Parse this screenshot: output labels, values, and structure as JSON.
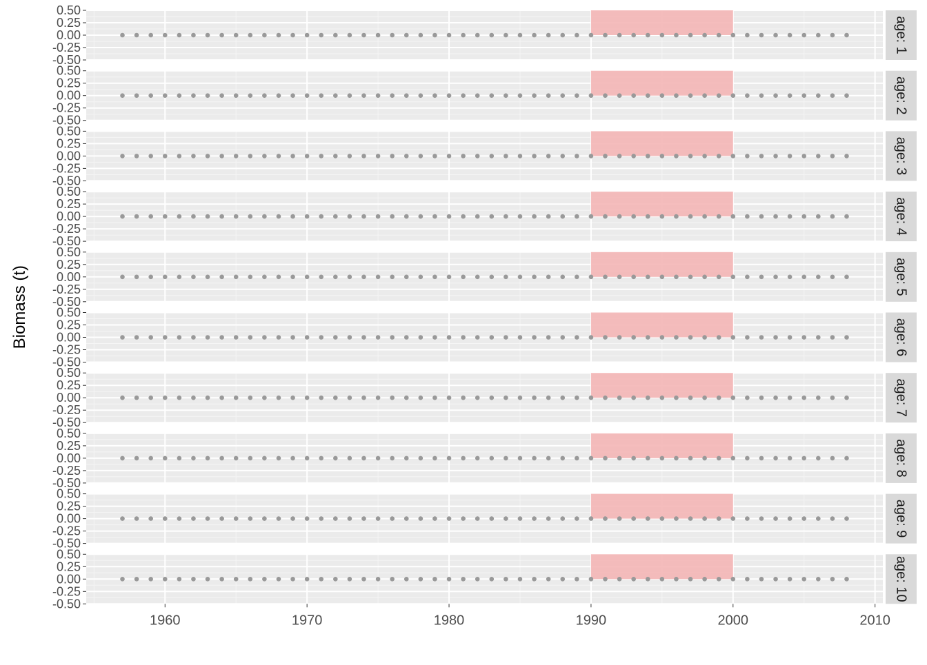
{
  "chart_data": {
    "type": "scatter",
    "ylabel": "Biomass (t)",
    "xlabel": "",
    "xlim": [
      1954.45,
      2010.55
    ],
    "ylim": [
      -0.5,
      0.5
    ],
    "x_ticks": [
      "1960",
      "1970",
      "1980",
      "1990",
      "2000",
      "2010"
    ],
    "y_ticks": [
      "-0.50",
      "-0.25",
      "0.00",
      "0.25",
      "0.50"
    ],
    "grid": true,
    "point_color": "#999999",
    "highlight_color": "#f4b6b6",
    "highlight": {
      "x_start": 1990,
      "x_end": 2000,
      "y_start": 0,
      "y_end": 0.5
    },
    "x_start": 1957,
    "x_end": 2008,
    "facets": [
      {
        "label": "age: 1",
        "y": 0
      },
      {
        "label": "age: 2",
        "y": 0
      },
      {
        "label": "age: 3",
        "y": 0
      },
      {
        "label": "age: 4",
        "y": 0
      },
      {
        "label": "age: 5",
        "y": 0
      },
      {
        "label": "age: 6",
        "y": 0
      },
      {
        "label": "age: 7",
        "y": 0
      },
      {
        "label": "age: 8",
        "y": 0
      },
      {
        "label": "age: 9",
        "y": 0
      },
      {
        "label": "age: 10",
        "y": 0
      }
    ]
  }
}
